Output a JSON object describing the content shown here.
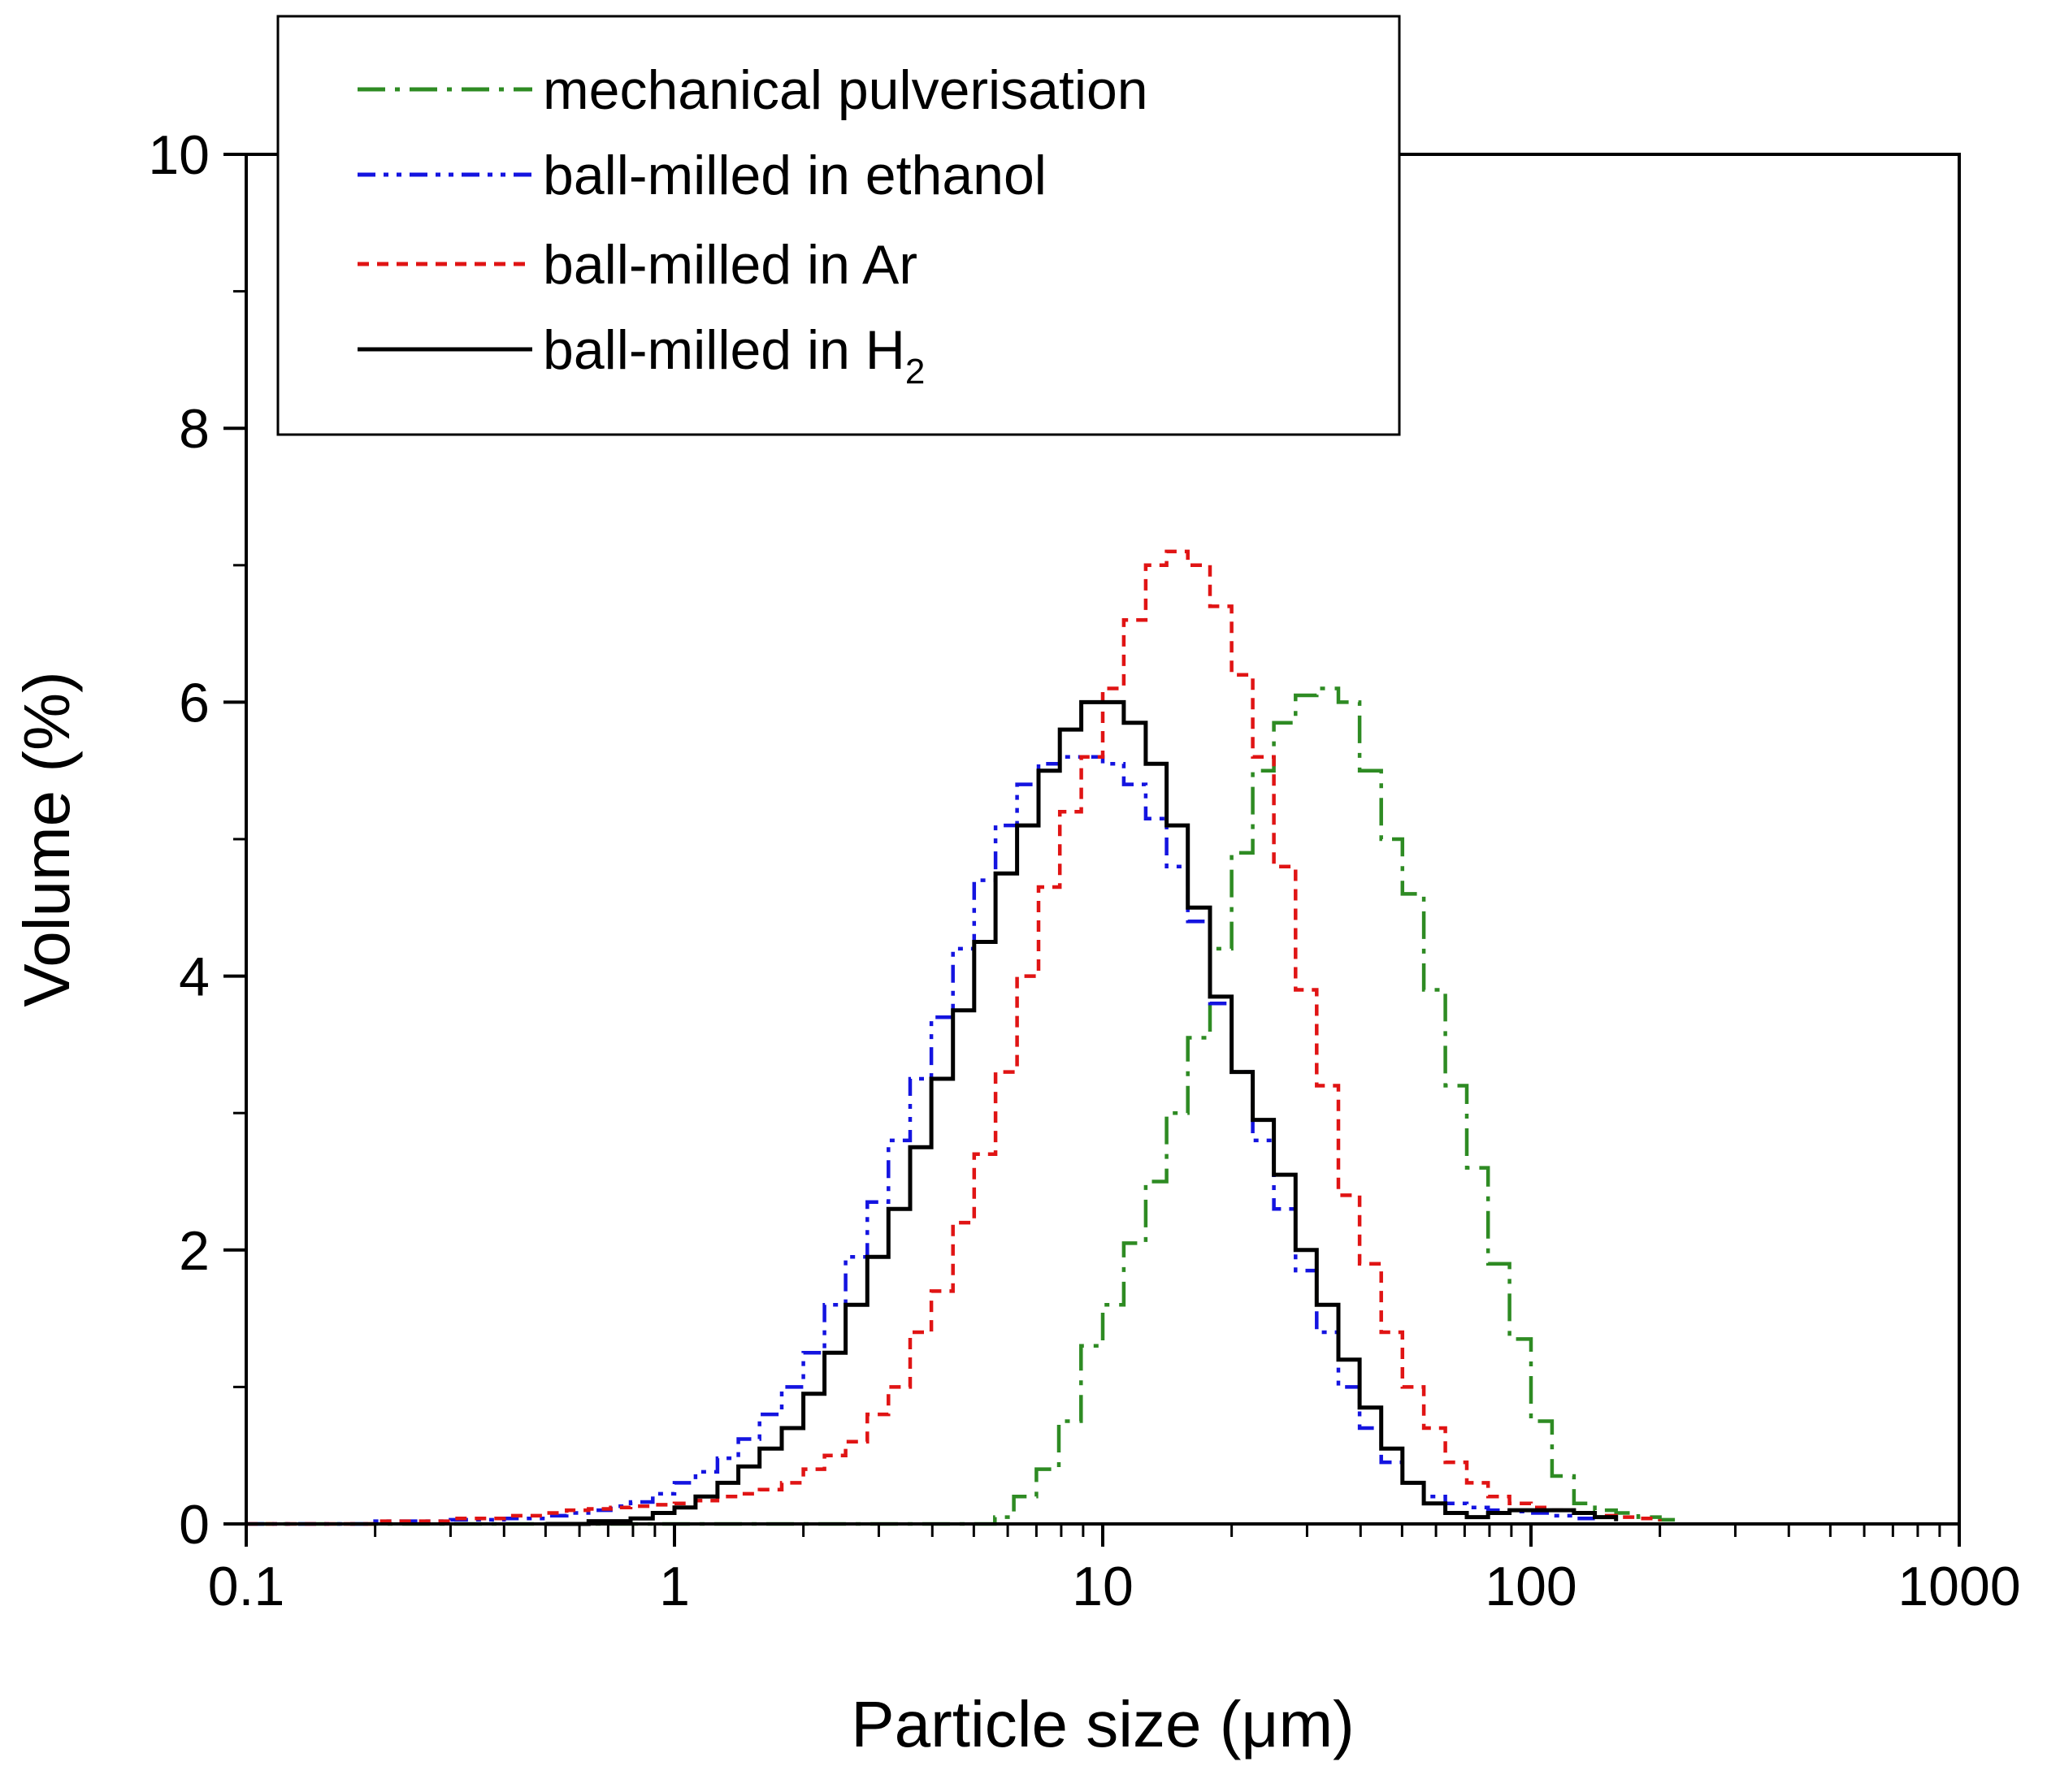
{
  "chart_data": {
    "type": "line",
    "title": "",
    "xlabel": "Particle size (μm)",
    "ylabel": "Volume (%)",
    "xscale": "log",
    "xlim": [
      0.1,
      1000
    ],
    "ylim": [
      0,
      10
    ],
    "x_ticks": [
      0.1,
      1,
      10,
      100,
      1000
    ],
    "x_tick_labels": [
      "0.1",
      "1",
      "10",
      "100",
      "1000"
    ],
    "y_ticks": [
      0,
      2,
      4,
      6,
      8,
      10
    ],
    "y_tick_labels": [
      "0",
      "2",
      "4",
      "6",
      "8",
      "10"
    ],
    "grid": false,
    "legend_position": "top-left",
    "series": [
      {
        "name": "mechanical pulverisation",
        "color": "#2e8b23",
        "style": "dash-dot",
        "x": [
          0.1,
          0.5,
          1,
          2,
          3,
          4,
          5,
          5.6,
          6.2,
          7.0,
          7.9,
          8.9,
          10.0,
          11.2,
          12.6,
          14.1,
          15.8,
          17.8,
          20.0,
          22.4,
          25.1,
          28.2,
          31.6,
          35.5,
          39.8,
          44.7,
          50.1,
          56.2,
          63.1,
          70.8,
          79.4,
          89.1,
          100,
          112,
          126,
          141,
          158,
          178,
          200,
          224
        ],
        "values": [
          0.0,
          0.0,
          0.0,
          0.0,
          0.0,
          0.0,
          0.0,
          0.05,
          0.2,
          0.4,
          0.75,
          1.3,
          1.6,
          2.05,
          2.5,
          3.0,
          3.55,
          4.2,
          4.9,
          5.5,
          5.85,
          6.05,
          6.1,
          6.0,
          5.5,
          5.0,
          4.6,
          3.9,
          3.2,
          2.6,
          1.9,
          1.35,
          0.75,
          0.35,
          0.15,
          0.1,
          0.08,
          0.05,
          0.03,
          0.0
        ]
      },
      {
        "name": "ball-milled in ethanol",
        "color": "#1414e0",
        "style": "dash-dot-dot",
        "x": [
          0.1,
          0.2,
          0.3,
          0.4,
          0.5,
          0.56,
          0.63,
          0.71,
          0.79,
          0.89,
          1.0,
          1.12,
          1.26,
          1.41,
          1.58,
          1.78,
          2.0,
          2.24,
          2.51,
          2.82,
          3.16,
          3.55,
          3.98,
          4.47,
          5.01,
          5.62,
          6.31,
          7.08,
          7.94,
          8.91,
          10.0,
          11.2,
          12.6,
          14.1,
          15.8,
          17.8,
          20.0,
          22.4,
          25.1,
          28.2,
          31.6,
          35.5,
          39.8,
          44.7,
          50.1,
          56.2,
          63.1,
          70.8,
          79.4,
          89.1,
          100,
          112,
          126,
          141
        ],
        "values": [
          0.0,
          0.02,
          0.03,
          0.04,
          0.06,
          0.08,
          0.1,
          0.13,
          0.16,
          0.22,
          0.3,
          0.38,
          0.48,
          0.62,
          0.8,
          1.0,
          1.25,
          1.6,
          1.95,
          2.35,
          2.8,
          3.25,
          3.7,
          4.2,
          4.7,
          5.1,
          5.4,
          5.55,
          5.6,
          5.6,
          5.55,
          5.4,
          5.15,
          4.8,
          4.4,
          3.8,
          3.3,
          2.8,
          2.3,
          1.85,
          1.4,
          1.0,
          0.7,
          0.45,
          0.3,
          0.2,
          0.15,
          0.12,
          0.1,
          0.09,
          0.08,
          0.06,
          0.04,
          0.02
        ]
      },
      {
        "name": "ball-milled in Ar",
        "color": "#e01414",
        "style": "dashed",
        "x": [
          0.1,
          0.2,
          0.3,
          0.4,
          0.5,
          0.56,
          0.63,
          0.71,
          0.79,
          0.89,
          1.0,
          1.12,
          1.26,
          1.41,
          1.58,
          1.78,
          2.0,
          2.24,
          2.51,
          2.82,
          3.16,
          3.55,
          3.98,
          4.47,
          5.01,
          5.62,
          6.31,
          7.08,
          7.94,
          8.91,
          10.0,
          11.2,
          12.6,
          14.1,
          15.8,
          17.8,
          20.0,
          22.4,
          25.1,
          28.2,
          31.6,
          35.5,
          39.8,
          44.7,
          50.1,
          56.2,
          63.1,
          70.8,
          79.4,
          89.1,
          100,
          112,
          126,
          141,
          158,
          178,
          200
        ],
        "values": [
          0.0,
          0.02,
          0.04,
          0.06,
          0.08,
          0.1,
          0.11,
          0.12,
          0.13,
          0.14,
          0.15,
          0.17,
          0.2,
          0.22,
          0.25,
          0.3,
          0.4,
          0.5,
          0.6,
          0.8,
          1.0,
          1.4,
          1.7,
          2.2,
          2.7,
          3.3,
          4.0,
          4.65,
          5.2,
          5.6,
          6.1,
          6.6,
          7.0,
          7.1,
          7.0,
          6.7,
          6.2,
          5.6,
          4.8,
          3.9,
          3.2,
          2.4,
          1.9,
          1.4,
          1.0,
          0.7,
          0.45,
          0.3,
          0.2,
          0.15,
          0.12,
          0.1,
          0.08,
          0.06,
          0.05,
          0.04,
          0.02
        ]
      },
      {
        "name": "ball-milled in H2",
        "color": "#000000",
        "style": "solid",
        "x": [
          0.5,
          0.63,
          0.79,
          0.89,
          1.0,
          1.12,
          1.26,
          1.41,
          1.58,
          1.78,
          2.0,
          2.24,
          2.51,
          2.82,
          3.16,
          3.55,
          3.98,
          4.47,
          5.01,
          5.62,
          6.31,
          7.08,
          7.94,
          8.91,
          10.0,
          11.2,
          12.6,
          14.1,
          15.8,
          17.8,
          20.0,
          22.4,
          25.1,
          28.2,
          31.6,
          35.5,
          39.8,
          44.7,
          50.1,
          56.2,
          63.1,
          70.8,
          79.4,
          89.1,
          100,
          112,
          126,
          141,
          158
        ],
        "values": [
          0.0,
          0.02,
          0.04,
          0.08,
          0.12,
          0.2,
          0.3,
          0.42,
          0.55,
          0.7,
          0.95,
          1.25,
          1.6,
          1.95,
          2.3,
          2.75,
          3.25,
          3.75,
          4.25,
          4.75,
          5.1,
          5.5,
          5.8,
          6.0,
          6.0,
          5.85,
          5.55,
          5.1,
          4.5,
          3.85,
          3.3,
          2.95,
          2.55,
          2.0,
          1.6,
          1.2,
          0.85,
          0.55,
          0.3,
          0.15,
          0.08,
          0.05,
          0.08,
          0.1,
          0.1,
          0.1,
          0.08,
          0.05,
          0.02
        ]
      }
    ]
  },
  "legend": {
    "items": [
      {
        "label": "mechanical pulverisation",
        "color": "#2e8b23",
        "style": "dash-dot"
      },
      {
        "label": "ball-milled in ethanol",
        "color": "#1414e0",
        "style": "dash-dot-dot"
      },
      {
        "label": "ball-milled in Ar",
        "color": "#e01414",
        "style": "dashed"
      },
      {
        "label": "ball-milled in H",
        "subscript": "2",
        "color": "#000000",
        "style": "solid"
      }
    ]
  }
}
